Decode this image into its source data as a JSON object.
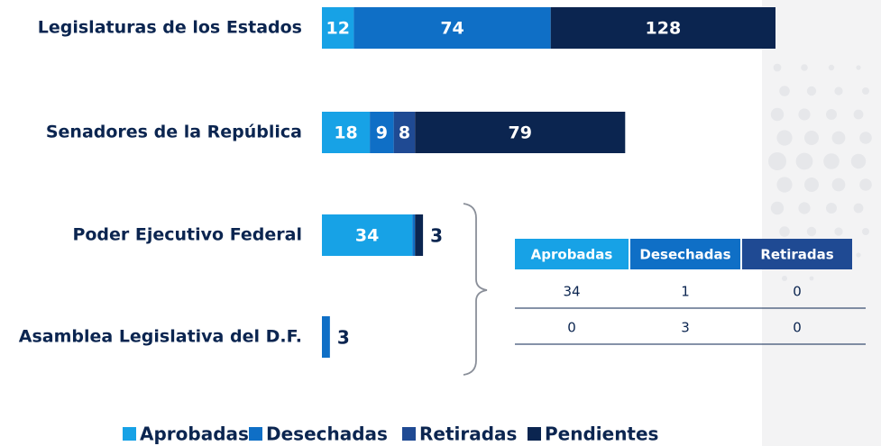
{
  "chart_data": {
    "type": "stacked-bar-horizontal",
    "categories": [
      "Legislaturas de los Estados",
      "Senadores de la República",
      "Poder Ejecutivo Federal",
      "Asamblea Legislativa del D.F."
    ],
    "series": [
      {
        "name": "Aprobadas",
        "color": "#17a2e6",
        "values": [
          12,
          18,
          34,
          0
        ]
      },
      {
        "name": "Desechadas",
        "color": "#0f6fc6",
        "values": [
          74,
          9,
          1,
          3
        ]
      },
      {
        "name": "Retiradas",
        "color": "#1f4a93",
        "values": [
          0,
          8,
          0,
          0
        ]
      },
      {
        "name": "Pendientes",
        "color": "#0b2550",
        "values": [
          128,
          79,
          3,
          0
        ]
      }
    ],
    "legend": "bottom"
  },
  "table": {
    "columns": [
      "Aprobadas",
      "Desechadas",
      "Retiradas"
    ],
    "rows": [
      [
        "34",
        "1",
        "0"
      ],
      [
        "0",
        "3",
        "0"
      ]
    ]
  }
}
